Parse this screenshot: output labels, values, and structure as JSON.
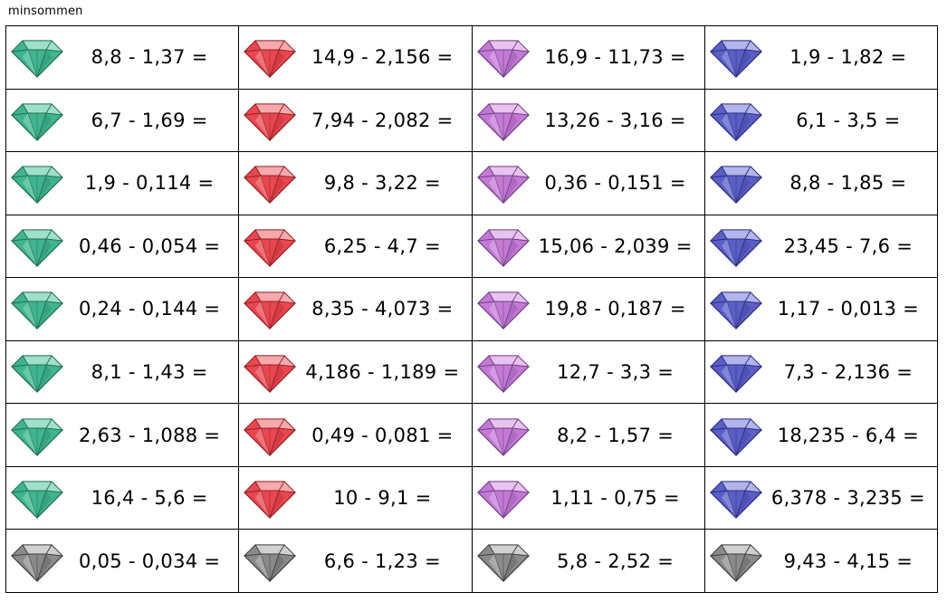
{
  "title": "minsommen",
  "palette": {
    "green": {
      "fill": "#3fb48f",
      "dark": "#1e6a52",
      "light": "#9fe0c8"
    },
    "red": {
      "fill": "#e8474f",
      "dark": "#8e1d22",
      "light": "#f7a9ac"
    },
    "purple": {
      "fill": "#c27ad6",
      "dark": "#6f3a80",
      "light": "#e8c3f0"
    },
    "blue": {
      "fill": "#5a5fc6",
      "dark": "#262a7a",
      "light": "#b2b5ec"
    },
    "gray": {
      "fill": "#8a8a8a",
      "dark": "#3b3b3b",
      "light": "#d0d0d0"
    }
  },
  "rows": [
    [
      {
        "gem": "green",
        "expr": "8,8 - 1,37 ="
      },
      {
        "gem": "red",
        "expr": "14,9 - 2,156 ="
      },
      {
        "gem": "purple",
        "expr": "16,9 - 11,73 ="
      },
      {
        "gem": "blue",
        "expr": "1,9 - 1,82 ="
      }
    ],
    [
      {
        "gem": "green",
        "expr": "6,7 - 1,69 ="
      },
      {
        "gem": "red",
        "expr": "7,94 - 2,082 ="
      },
      {
        "gem": "purple",
        "expr": "13,26 - 3,16 ="
      },
      {
        "gem": "blue",
        "expr": "6,1 - 3,5 ="
      }
    ],
    [
      {
        "gem": "green",
        "expr": "1,9 - 0,114 ="
      },
      {
        "gem": "red",
        "expr": "9,8 - 3,22 ="
      },
      {
        "gem": "purple",
        "expr": "0,36 - 0,151 ="
      },
      {
        "gem": "blue",
        "expr": "8,8 - 1,85 ="
      }
    ],
    [
      {
        "gem": "green",
        "expr": "0,46 - 0,054 ="
      },
      {
        "gem": "red",
        "expr": "6,25 - 4,7 ="
      },
      {
        "gem": "purple",
        "expr": "15,06 - 2,039 ="
      },
      {
        "gem": "blue",
        "expr": "23,45 - 7,6 ="
      }
    ],
    [
      {
        "gem": "green",
        "expr": "0,24 - 0,144 ="
      },
      {
        "gem": "red",
        "expr": "8,35 - 4,073 ="
      },
      {
        "gem": "purple",
        "expr": "19,8 - 0,187 ="
      },
      {
        "gem": "blue",
        "expr": "1,17 - 0,013 ="
      }
    ],
    [
      {
        "gem": "green",
        "expr": "8,1 - 1,43 ="
      },
      {
        "gem": "red",
        "expr": "4,186 - 1,189 ="
      },
      {
        "gem": "purple",
        "expr": "12,7 - 3,3 ="
      },
      {
        "gem": "blue",
        "expr": "7,3 - 2,136 ="
      }
    ],
    [
      {
        "gem": "green",
        "expr": "2,63 - 1,088 ="
      },
      {
        "gem": "red",
        "expr": "0,49 - 0,081 ="
      },
      {
        "gem": "purple",
        "expr": "8,2 - 1,57 ="
      },
      {
        "gem": "blue",
        "expr": "18,235 - 6,4 ="
      }
    ],
    [
      {
        "gem": "green",
        "expr": "16,4 - 5,6 ="
      },
      {
        "gem": "red",
        "expr": "10 - 9,1 ="
      },
      {
        "gem": "purple",
        "expr": "1,11 - 0,75 ="
      },
      {
        "gem": "blue",
        "expr": "6,378 - 3,235 ="
      }
    ],
    [
      {
        "gem": "gray",
        "expr": "0,05 - 0,034 ="
      },
      {
        "gem": "gray",
        "expr": "6,6 - 1,23 ="
      },
      {
        "gem": "gray",
        "expr": "5,8 - 2,52 ="
      },
      {
        "gem": "gray",
        "expr": "9,43 - 4,15 ="
      }
    ]
  ]
}
